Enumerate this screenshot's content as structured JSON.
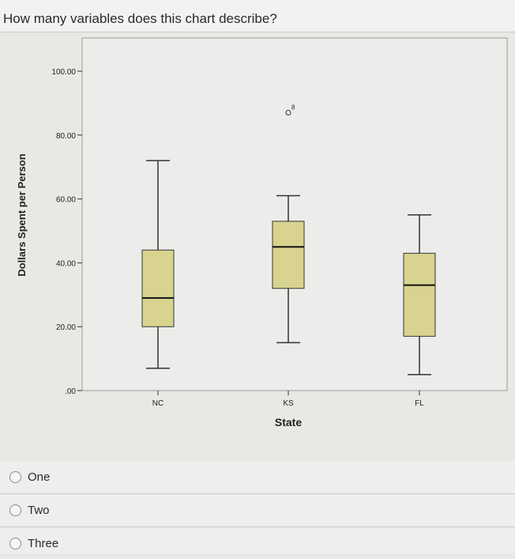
{
  "question": {
    "text": "How many variables does this chart describe?"
  },
  "chart_data": {
    "type": "box",
    "title": "",
    "xlabel": "State",
    "ylabel": "Dollars Spent per Person",
    "ylim": [
      0,
      100
    ],
    "yticks": [
      "100.00",
      "80.00",
      "60.00",
      "40.00",
      "20.00",
      ".00"
    ],
    "ytick_values": [
      100,
      80,
      60,
      40,
      20,
      0
    ],
    "categories": [
      "NC",
      "KS",
      "FL"
    ],
    "boxes": [
      {
        "category": "NC",
        "whisker_low": 7,
        "q1": 20,
        "median": 29,
        "q3": 44,
        "whisker_high": 72
      },
      {
        "category": "KS",
        "whisker_low": 15,
        "q1": 32,
        "median": 45,
        "q3": 53,
        "whisker_high": 61
      },
      {
        "category": "FL",
        "whisker_low": 5,
        "q1": 17,
        "median": 33,
        "q3": 43,
        "whisker_high": 55
      }
    ],
    "outliers": [
      {
        "category": "KS",
        "value": 87,
        "label": "8"
      }
    ],
    "box_color": "#d8d48f",
    "grid": false
  },
  "options": [
    {
      "label": "One"
    },
    {
      "label": "Two"
    },
    {
      "label": "Three"
    }
  ]
}
